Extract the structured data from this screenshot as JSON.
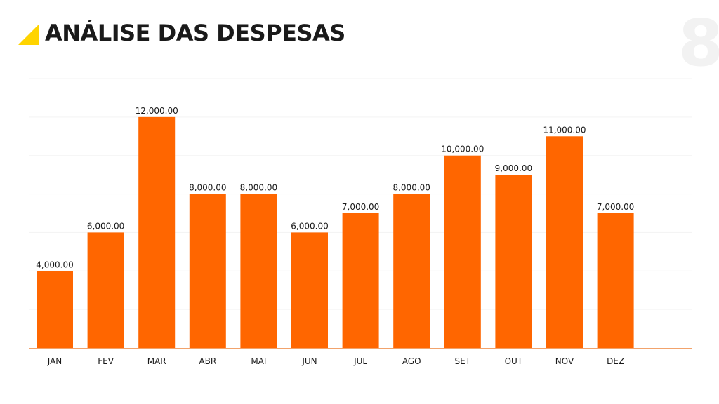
{
  "header": {
    "title": "ANÁLISE DAS DESPESAS",
    "page_number": "8"
  },
  "colors": {
    "accent": "#ffd400",
    "bar": "#ff6600",
    "axis": "#f2a36c",
    "grid": "#f3f3f3",
    "page_number": "#f2f2f2"
  },
  "chart_data": {
    "type": "bar",
    "title": "",
    "xlabel": "",
    "ylabel": "",
    "categories": [
      "JAN",
      "FEV",
      "MAR",
      "ABR",
      "MAI",
      "JUN",
      "JUL",
      "AGO",
      "SET",
      "OUT",
      "NOV",
      "DEZ"
    ],
    "values": [
      4000,
      6000,
      12000,
      8000,
      8000,
      6000,
      7000,
      8000,
      10000,
      9000,
      11000,
      7000
    ],
    "value_labels": [
      "4,000.00",
      "6,000.00",
      "12,000.00",
      "8,000.00",
      "8,000.00",
      "6,000.00",
      "7,000.00",
      "8,000.00",
      "10,000.00",
      "9,000.00",
      "11,000.00",
      "7,000.00"
    ],
    "ylim": [
      0,
      14000
    ],
    "grid_step": 2000,
    "grid": true,
    "legend": false
  }
}
